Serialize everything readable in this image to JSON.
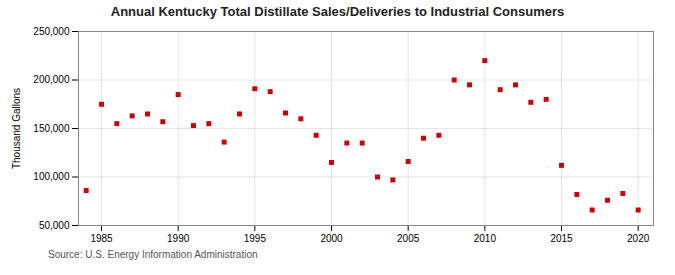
{
  "chart_data": {
    "type": "scatter",
    "title": "Annual Kentucky Total Distillate Sales/Deliveries to Industrial Consumers",
    "ylabel": "Thousand Gallons",
    "source": "Source: U.S. Energy Information Administration",
    "x": [
      1984,
      1985,
      1986,
      1987,
      1988,
      1989,
      1990,
      1991,
      1992,
      1993,
      1994,
      1995,
      1996,
      1997,
      1998,
      1999,
      2000,
      2001,
      2002,
      2003,
      2004,
      2005,
      2006,
      2007,
      2008,
      2009,
      2010,
      2011,
      2012,
      2013,
      2014,
      2015,
      2016,
      2017,
      2018,
      2019,
      2020
    ],
    "values": [
      86000,
      175000,
      155000,
      163000,
      165000,
      157000,
      185000,
      153000,
      155000,
      136000,
      165000,
      191000,
      188000,
      166000,
      160000,
      143000,
      115000,
      135000,
      135000,
      100000,
      97000,
      116000,
      140000,
      143000,
      200000,
      195000,
      220000,
      190000,
      195000,
      177000,
      180000,
      112000,
      82000,
      66000,
      76000,
      83000,
      66000
    ],
    "color": "#cc0000",
    "marker": "square",
    "grid": true,
    "xlim": [
      1983.5,
      2021
    ],
    "xticks": [
      1985,
      1990,
      1995,
      2000,
      2005,
      2010,
      2015,
      2020
    ],
    "ylim": [
      50000,
      250000
    ],
    "yticks": [
      {
        "value": 50000,
        "label": "50,000"
      },
      {
        "value": 100000,
        "label": "100,000"
      },
      {
        "value": 150000,
        "label": "150,000"
      },
      {
        "value": 200000,
        "label": "200,000"
      },
      {
        "value": 250000,
        "label": "250,000"
      }
    ]
  }
}
